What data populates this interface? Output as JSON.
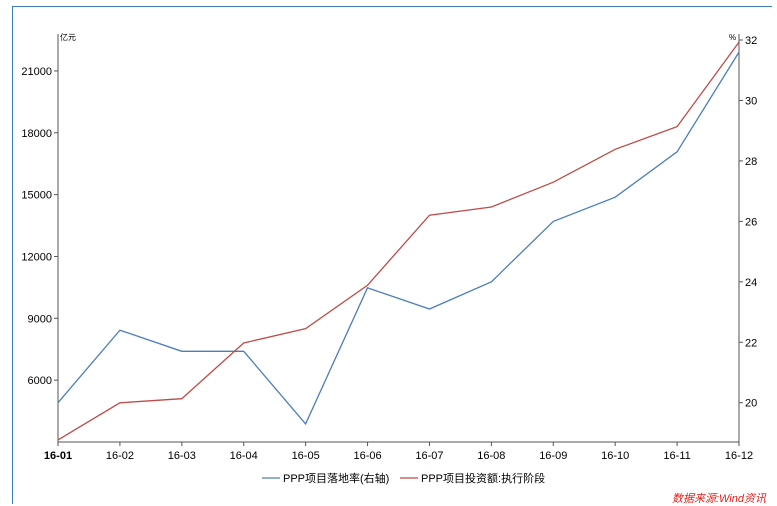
{
  "chart_data": {
    "type": "line",
    "categories": [
      "16-01",
      "16-02",
      "16-03",
      "16-04",
      "16-05",
      "16-06",
      "16-07",
      "16-08",
      "16-09",
      "16-10",
      "16-11",
      "16-12"
    ],
    "left_axis": {
      "unit": "亿元",
      "ylim": [
        3000,
        22500
      ],
      "ticks": [
        6000,
        9000,
        12000,
        15000,
        18000,
        21000
      ]
    },
    "right_axis": {
      "unit": "%",
      "ylim": [
        18.7,
        32
      ],
      "ticks": [
        20,
        22,
        24,
        26,
        28,
        30,
        32
      ]
    },
    "series": [
      {
        "name": "PPP项目落地率(右轴)",
        "axis": "right",
        "color": "#4a7ebb",
        "values": [
          20,
          22.4,
          21.7,
          21.7,
          19.3,
          23.8,
          23.1,
          24,
          26,
          26.8,
          28.3,
          31.6
        ]
      },
      {
        "name": "PPP项目投资额:执行阶段",
        "axis": "left",
        "color": "#be4b48",
        "values": [
          3100,
          4900,
          5100,
          7800,
          8500,
          10600,
          14000,
          14400,
          15600,
          17200,
          18300,
          22400
        ]
      }
    ],
    "source": "数据来源:Wind资讯"
  }
}
